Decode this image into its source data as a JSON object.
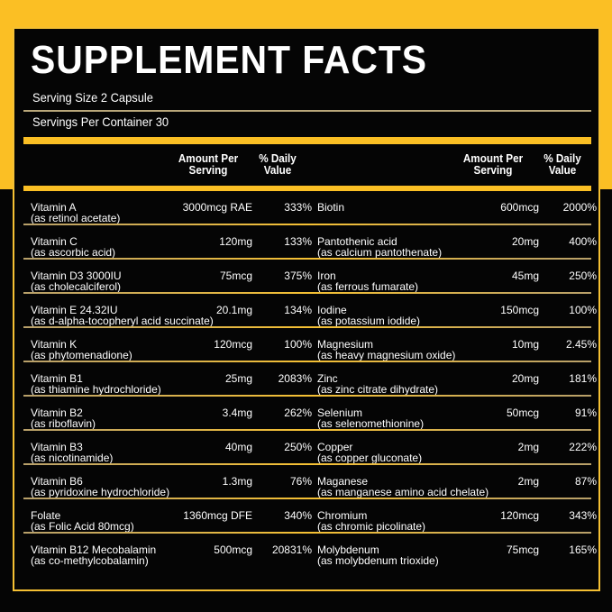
{
  "title": "SUPPLEMENT FACTS",
  "serving_size": "Serving Size 2 Capsule",
  "servings_per_container": "Servings Per Container 30",
  "headers": {
    "amount": "Amount Per",
    "amount2": "Serving",
    "dv": "% Daily",
    "dv2": "Value"
  },
  "colors": {
    "accent": "#fbbf24",
    "background": "#050505"
  },
  "rows": [
    {
      "l": {
        "name": "Vitamin A",
        "form": "(as retinol acetate)",
        "amount": "3000mcg RAE",
        "dv": "333%"
      },
      "r": {
        "name": "Biotin",
        "form": "",
        "amount": "600mcg",
        "dv": "2000%"
      }
    },
    {
      "l": {
        "name": "Vitamin C",
        "form": "(as ascorbic acid)",
        "amount": "120mg",
        "dv": "133%"
      },
      "r": {
        "name": "Pantothenic acid",
        "form": "(as calcium pantothenate)",
        "amount": "20mg",
        "dv": "400%"
      }
    },
    {
      "l": {
        "name": "Vitamin D3 3000IU",
        "form": "(as cholecalciferol)",
        "amount": "75mcg",
        "dv": "375%"
      },
      "r": {
        "name": "Iron",
        "form": "(as ferrous fumarate)",
        "amount": "45mg",
        "dv": "250%"
      }
    },
    {
      "l": {
        "name": "Vitamin E 24.32IU",
        "form": "(as d-alpha-tocopheryl acid succinate)",
        "amount": "20.1mg",
        "dv": "134%"
      },
      "r": {
        "name": "Iodine",
        "form": "(as potassium iodide)",
        "amount": "150mcg",
        "dv": "100%"
      }
    },
    {
      "l": {
        "name": "Vitamin K",
        "form": "(as phytomenadione)",
        "amount": "120mcg",
        "dv": "100%"
      },
      "r": {
        "name": "Magnesium",
        "form": "(as heavy magnesium oxide)",
        "amount": "10mg",
        "dv": "2.45%"
      }
    },
    {
      "l": {
        "name": "Vitamin B1",
        "form": "(as thiamine hydrochloride)",
        "amount": "25mg",
        "dv": "2083%"
      },
      "r": {
        "name": "Zinc",
        "form": "(as zinc citrate dihydrate)",
        "amount": "20mg",
        "dv": "181%"
      }
    },
    {
      "l": {
        "name": "Vitamin B2",
        "form": "(as riboflavin)",
        "amount": "3.4mg",
        "dv": "262%"
      },
      "r": {
        "name": "Selenium",
        "form": "(as selenomethionine)",
        "amount": "50mcg",
        "dv": "91%"
      }
    },
    {
      "l": {
        "name": "Vitamin B3",
        "form": "(as nicotinamide)",
        "amount": "40mg",
        "dv": "250%"
      },
      "r": {
        "name": "Copper",
        "form": "(as copper gluconate)",
        "amount": "2mg",
        "dv": "222%"
      }
    },
    {
      "l": {
        "name": "Vitamin B6",
        "form": "(as pyridoxine hydrochloride)",
        "amount": "1.3mg",
        "dv": "76%"
      },
      "r": {
        "name": "Maganese",
        "form": "(as manganese amino acid chelate)",
        "amount": "2mg",
        "dv": "87%"
      }
    },
    {
      "l": {
        "name": "Folate",
        "form": "(as Folic Acid 80mcg)",
        "amount": "1360mcg DFE",
        "dv": "340%"
      },
      "r": {
        "name": "Chromium",
        "form": "(as chromic picolinate)",
        "amount": "120mcg",
        "dv": "343%"
      }
    },
    {
      "l": {
        "name": "Vitamin B12 Mecobalamin",
        "form": "(as co-methylcobalamin)",
        "amount": "500mcg",
        "dv": "20831%"
      },
      "r": {
        "name": "Molybdenum",
        "form": "(as molybdenum trioxide)",
        "amount": "75mcg",
        "dv": "165%"
      }
    }
  ]
}
